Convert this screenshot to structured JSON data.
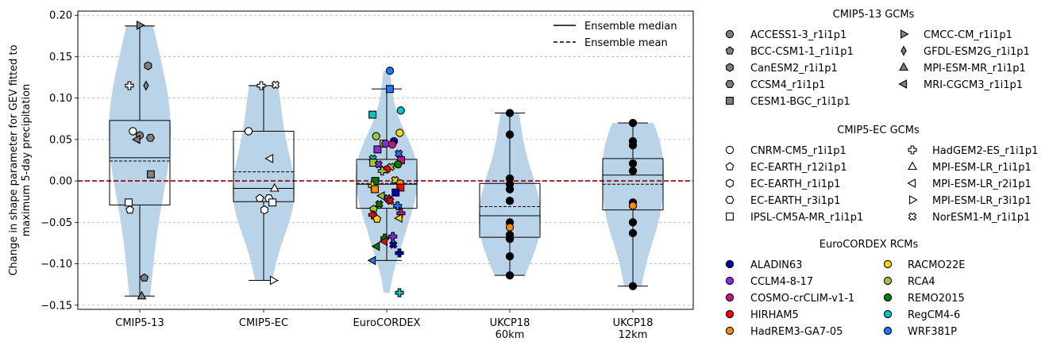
{
  "chart_data": {
    "type": "violin-box-strip",
    "title": "",
    "xlabel": "",
    "ylabel": "Change in shape parameter for GEV fitted to maximum 5-day precipitation",
    "ylabel_lines": [
      "Change in shape parameter for GEV fitted to",
      "maximum 5-day precipitation"
    ],
    "ylim": [
      -0.155,
      0.205
    ],
    "yticks": [
      -0.15,
      -0.1,
      -0.05,
      0.0,
      0.05,
      0.1,
      0.15,
      0.2
    ],
    "ytick_labels": [
      "−0.15",
      "−0.10",
      "−0.05",
      "0.00",
      "0.05",
      "0.10",
      "0.15",
      "0.20"
    ],
    "grid": "y-dashed",
    "reference_line": {
      "y": 0.0,
      "color": "#8b0000",
      "style": "dashed"
    },
    "violin_color": "#b9d3e8",
    "legend_lines": [
      {
        "label": "Ensemble median",
        "style": "solid"
      },
      {
        "label": "Ensemble mean",
        "style": "dashed"
      }
    ],
    "legend_placement": "top-right",
    "categories": [
      {
        "label_lines": [
          "CMIP5-13"
        ],
        "box": {
          "whisker_low": -0.139,
          "q1": -0.029,
          "median": 0.028,
          "mean": 0.024,
          "q3": 0.073,
          "whisker_high": 0.187
        }
      },
      {
        "label_lines": [
          "CMIP5-EC"
        ],
        "box": {
          "whisker_low": -0.12,
          "q1": -0.025,
          "median": -0.009,
          "mean": 0.011,
          "q3": 0.06,
          "whisker_high": 0.115
        }
      },
      {
        "label_lines": [
          "EuroCORDEX"
        ],
        "box": {
          "whisker_low": -0.096,
          "q1": -0.033,
          "median": -0.004,
          "mean": -0.003,
          "q3": 0.026,
          "whisker_high": 0.111
        }
      },
      {
        "label_lines": [
          "UKCP18",
          "60km"
        ],
        "box": {
          "whisker_low": -0.114,
          "q1": -0.068,
          "median": -0.042,
          "mean": -0.031,
          "q3": -0.003,
          "whisker_high": 0.082
        }
      },
      {
        "label_lines": [
          "UKCP18",
          "12km"
        ],
        "box": {
          "whisker_low": -0.127,
          "q1": -0.035,
          "median": 0.007,
          "mean": -0.004,
          "q3": 0.027,
          "whisker_high": 0.07
        }
      }
    ],
    "points": [
      {
        "group": 0,
        "model": "ACCESS1-3_r1i1p1",
        "y": 0.055
      },
      {
        "group": 0,
        "model": "BCC-CSM1-1_r1i1p1",
        "y": -0.117
      },
      {
        "group": 0,
        "model": "CanESM2_r1i1p1",
        "y": 0.139
      },
      {
        "group": 0,
        "model": "CCSM4_r1i1p1",
        "y": 0.052
      },
      {
        "group": 0,
        "model": "CESM1-BGC_r1i1p1",
        "y": 0.008
      },
      {
        "group": 0,
        "model": "CMCC-CM_r1i1p1",
        "y": 0.188
      },
      {
        "group": 0,
        "model": "GFDL-ESM2G_r1i1p1",
        "y": 0.115
      },
      {
        "group": 0,
        "model": "MPI-ESM-MR_r1i1p1",
        "y": -0.139
      },
      {
        "group": 0,
        "model": "MRI-CGCM3_r1i1p1",
        "y": 0.05
      },
      {
        "group": 0,
        "model": "CNRM-CM5_r1i1p1",
        "y": 0.06
      },
      {
        "group": 0,
        "model": "EC-EARTH_r12i1p1",
        "y": -0.035
      },
      {
        "group": 0,
        "model": "IPSL-CM5A-MR_r1i1p1",
        "y": -0.026
      },
      {
        "group": 0,
        "model": "HadGEM2-ES_r1i1p1",
        "y": 0.115
      },
      {
        "group": 1,
        "model": "CNRM-CM5_r1i1p1",
        "y": 0.06
      },
      {
        "group": 1,
        "model": "EC-EARTH_r12i1p1",
        "y": -0.021
      },
      {
        "group": 1,
        "model": "EC-EARTH_r1i1p1",
        "y": -0.035
      },
      {
        "group": 1,
        "model": "EC-EARTH_r3i1p1",
        "y": -0.021
      },
      {
        "group": 1,
        "model": "IPSL-CM5A-MR_r1i1p1",
        "y": -0.026
      },
      {
        "group": 1,
        "model": "HadGEM2-ES_r1i1p1",
        "y": 0.115
      },
      {
        "group": 1,
        "model": "MPI-ESM-LR_r1i1p1",
        "y": -0.009
      },
      {
        "group": 1,
        "model": "MPI-ESM-LR_r2i1p1",
        "y": 0.027
      },
      {
        "group": 1,
        "model": "MPI-ESM-LR_r3i1p1",
        "y": -0.12
      },
      {
        "group": 1,
        "model": "NorESM1-M_r1i1p1",
        "y": 0.116
      },
      {
        "group": 2,
        "model": "WRF381P",
        "y": 0.133
      },
      {
        "group": 2,
        "model": "WRF381P",
        "y": 0.111
      },
      {
        "group": 2,
        "model": "RegCM4-6",
        "y": 0.085
      },
      {
        "group": 2,
        "model": "RegCM4-6",
        "y": 0.08
      },
      {
        "group": 2,
        "model": "RACMO22E",
        "y": 0.058
      },
      {
        "group": 2,
        "model": "RCA4",
        "y": 0.054
      },
      {
        "group": 2,
        "model": "ALADIN63",
        "y": 0.048
      },
      {
        "group": 2,
        "model": "RACMO22E",
        "y": 0.045
      },
      {
        "group": 2,
        "model": "CCLM4-8-17",
        "y": 0.045
      },
      {
        "group": 2,
        "model": "COSMO-crCLIM-v1-1",
        "y": 0.044
      },
      {
        "group": 2,
        "model": "CCLM4-8-17",
        "y": 0.038
      },
      {
        "group": 2,
        "model": "WRF381P",
        "y": 0.033
      },
      {
        "group": 2,
        "model": "RegCM4-6",
        "y": 0.027
      },
      {
        "group": 2,
        "model": "COSMO-crCLIM-v1-1",
        "y": 0.025
      },
      {
        "group": 2,
        "model": "RCA4",
        "y": 0.022
      },
      {
        "group": 2,
        "model": "REMO2015",
        "y": 0.02
      },
      {
        "group": 2,
        "model": "CCLM4-8-17",
        "y": 0.02
      },
      {
        "group": 2,
        "model": "RCA4",
        "y": 0.017
      },
      {
        "group": 2,
        "model": "HIRHAM5",
        "y": 0.014
      },
      {
        "group": 2,
        "model": "RCA4",
        "y": 0.012
      },
      {
        "group": 2,
        "model": "RACMO22E",
        "y": 0.001
      },
      {
        "group": 2,
        "model": "REMO2015",
        "y": 0.0
      },
      {
        "group": 2,
        "model": "HadREM3-GA7-05",
        "y": -0.003
      },
      {
        "group": 2,
        "model": "RACMO22E",
        "y": -0.006
      },
      {
        "group": 2,
        "model": "HIRHAM5",
        "y": -0.008
      },
      {
        "group": 2,
        "model": "HadREM3-GA7-05",
        "y": -0.01
      },
      {
        "group": 2,
        "model": "ALADIN63",
        "y": -0.014
      },
      {
        "group": 2,
        "model": "RCA4",
        "y": -0.018
      },
      {
        "group": 2,
        "model": "COSMO-crCLIM-v1-1",
        "y": -0.021
      },
      {
        "group": 2,
        "model": "HIRHAM5",
        "y": -0.024
      },
      {
        "group": 2,
        "model": "REMO2015",
        "y": -0.028
      },
      {
        "group": 2,
        "model": "WRF381P",
        "y": -0.03
      },
      {
        "group": 2,
        "model": "RCA4",
        "y": -0.034
      },
      {
        "group": 2,
        "model": "COSMO-crCLIM-v1-1",
        "y": -0.039
      },
      {
        "group": 2,
        "model": "HIRHAM5",
        "y": -0.041
      },
      {
        "group": 2,
        "model": "RACMO22E",
        "y": -0.045
      },
      {
        "group": 2,
        "model": "RACMO22E",
        "y": -0.046
      },
      {
        "group": 2,
        "model": "CCLM4-8-17",
        "y": -0.067
      },
      {
        "group": 2,
        "model": "REMO2015",
        "y": -0.069
      },
      {
        "group": 2,
        "model": "HIRHAM5",
        "y": -0.073
      },
      {
        "group": 2,
        "model": "ALADIN63",
        "y": -0.077
      },
      {
        "group": 2,
        "model": "REMO2015",
        "y": -0.079
      },
      {
        "group": 2,
        "model": "ALADIN63",
        "y": -0.087
      },
      {
        "group": 2,
        "model": "WRF381P",
        "y": -0.096
      },
      {
        "group": 2,
        "model": "RegCM4-6",
        "y": -0.135
      },
      {
        "group": 3,
        "model": "ensemble member",
        "y": 0.082
      },
      {
        "group": 3,
        "model": "ensemble member",
        "y": 0.056
      },
      {
        "group": 3,
        "model": "ensemble member",
        "y": 0.003
      },
      {
        "group": 3,
        "model": "ensemble member",
        "y": -0.004
      },
      {
        "group": 3,
        "model": "ensemble member",
        "y": -0.01
      },
      {
        "group": 3,
        "model": "ensemble member",
        "y": -0.024
      },
      {
        "group": 3,
        "model": "ensemble member",
        "y": -0.05
      },
      {
        "group": 3,
        "model": "ensemble member",
        "y": -0.056
      },
      {
        "group": 3,
        "model": "ensemble member",
        "y": -0.065
      },
      {
        "group": 3,
        "model": "ensemble member",
        "y": -0.07
      },
      {
        "group": 3,
        "model": "ensemble member",
        "y": -0.091
      },
      {
        "group": 3,
        "model": "ensemble member",
        "y": -0.114
      },
      {
        "group": 4,
        "model": "ensemble member",
        "y": 0.07
      },
      {
        "group": 4,
        "model": "ensemble member",
        "y": 0.048
      },
      {
        "group": 4,
        "model": "ensemble member",
        "y": 0.043
      },
      {
        "group": 4,
        "model": "ensemble member",
        "y": 0.021
      },
      {
        "group": 4,
        "model": "ensemble member",
        "y": 0.012
      },
      {
        "group": 4,
        "model": "ensemble member",
        "y": -0.026
      },
      {
        "group": 4,
        "model": "ensemble member",
        "y": -0.03
      },
      {
        "group": 4,
        "model": "ensemble member",
        "y": -0.05
      },
      {
        "group": 4,
        "model": "ensemble member",
        "y": -0.063
      },
      {
        "group": 4,
        "model": "ensemble member",
        "y": -0.127
      }
    ],
    "legend_groups": [
      {
        "title": "CMIP5-13 GCMs",
        "fill": "#808080",
        "items": [
          {
            "label": "ACCESS1-3_r1i1p1",
            "marker": "circle"
          },
          {
            "label": "BCC-CSM1-1_r1i1p1",
            "marker": "pentagon"
          },
          {
            "label": "CanESM2_r1i1p1",
            "marker": "hexagon"
          },
          {
            "label": "CCSM4_r1i1p1",
            "marker": "hexagon2"
          },
          {
            "label": "CESM1-BGC_r1i1p1",
            "marker": "square"
          },
          {
            "label": "CMCC-CM_r1i1p1",
            "marker": "triangle-right"
          },
          {
            "label": "GFDL-ESM2G_r1i1p1",
            "marker": "thin-diamond"
          },
          {
            "label": "MPI-ESM-MR_r1i1p1",
            "marker": "triangle-up"
          },
          {
            "label": "MRI-CGCM3_r1i1p1",
            "marker": "triangle-left"
          }
        ]
      },
      {
        "title": "CMIP5-EC GCMs",
        "fill": "#ffffff",
        "items": [
          {
            "label": "CNRM-CM5_r1i1p1",
            "marker": "circle"
          },
          {
            "label": "EC-EARTH_r12i1p1",
            "marker": "pentagon"
          },
          {
            "label": "EC-EARTH_r1i1p1",
            "marker": "hexagon"
          },
          {
            "label": "EC-EARTH_r3i1p1",
            "marker": "hexagon2"
          },
          {
            "label": "IPSL-CM5A-MR_r1i1p1",
            "marker": "square"
          },
          {
            "label": "HadGEM2-ES_r1i1p1",
            "marker": "plus"
          },
          {
            "label": "MPI-ESM-LR_r1i1p1",
            "marker": "triangle-up"
          },
          {
            "label": "MPI-ESM-LR_r2i1p1",
            "marker": "triangle-left"
          },
          {
            "label": "MPI-ESM-LR_r3i1p1",
            "marker": "triangle-right"
          },
          {
            "label": "NorESM1-M_r1i1p1",
            "marker": "x"
          }
        ]
      },
      {
        "title": "EuroCORDEX RCMs",
        "items": [
          {
            "label": "ALADIN63",
            "marker": "circle",
            "color": "#0000b0"
          },
          {
            "label": "CCLM4-8-17",
            "marker": "circle",
            "color": "#8a2be2"
          },
          {
            "label": "COSMO-crCLIM-v1-1",
            "marker": "circle",
            "color": "#c71585"
          },
          {
            "label": "HIRHAM5",
            "marker": "circle",
            "color": "#ff0000"
          },
          {
            "label": "HadREM3-GA7-05",
            "marker": "circle",
            "color": "#ff8c00"
          },
          {
            "label": "RACMO22E",
            "marker": "circle",
            "color": "#ffd700"
          },
          {
            "label": "RCA4",
            "marker": "circle",
            "color": "#9acd32"
          },
          {
            "label": "REMO2015",
            "marker": "circle",
            "color": "#008000"
          },
          {
            "label": "RegCM4-6",
            "marker": "circle",
            "color": "#00c8c8"
          },
          {
            "label": "WRF381P",
            "marker": "circle",
            "color": "#1e78ff"
          }
        ]
      }
    ]
  }
}
